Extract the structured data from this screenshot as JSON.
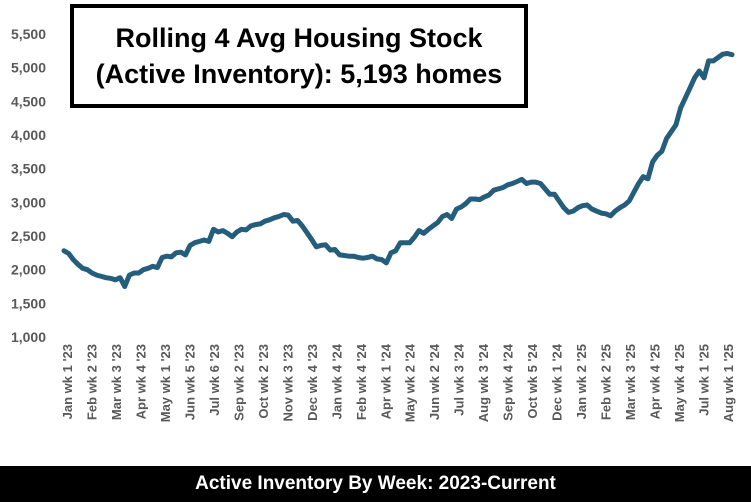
{
  "title": {
    "line1": "Rolling 4 Avg Housing Stock",
    "line2": "(Active Inventory): 5,193 homes"
  },
  "footer": "Active Inventory By Week:  2023-Current",
  "colors": {
    "line": "#255E7D",
    "axis_text": "#595959",
    "background": "#ffffff"
  },
  "chart_data": {
    "type": "line",
    "grid": false,
    "legend": "none",
    "ylim": [
      1000,
      5500
    ],
    "yticks": [
      1000,
      1500,
      2000,
      2500,
      3000,
      3500,
      4000,
      4500,
      5000,
      5500
    ],
    "ytick_labels": [
      "1,000",
      "1,500",
      "2,000",
      "2,500",
      "3,000",
      "3,500",
      "4,000",
      "4,500",
      "5,000",
      "5,500"
    ],
    "xtick_labels": [
      "Jan wk 1 '23",
      "Feb wk 2 '23",
      "Mar wk 3 '23",
      "Apr wk 4 '23",
      "May wk 1 '23",
      "Jun wk 5 '23",
      "Jul wk 6 '23",
      "Sep wk 2 '23",
      "Oct wk 2 '23",
      "Nov wk 3 '23",
      "Dec wk 4 '23",
      "Jan wk 4 '24",
      "Feb wk 4 '24",
      "Apr wk 1 '24",
      "May wk 2 '24",
      "Jun wk 2 '24",
      "Jul wk 3 '24",
      "Aug wk 3 '24",
      "Sep wk 4 '24",
      "Oct wk 5 '24",
      "Dec wk 1 '24",
      "Jan wk 2 '25",
      "Feb wk 2 '25",
      "Mar wk 3 '25",
      "Apr wk 4 '25",
      "May wk 4 '25",
      "Jul wk 1 '25",
      "Aug wk 1 '25"
    ],
    "series": [
      {
        "values": [
          2280,
          2240,
          2150,
          2080,
          2020,
          2000,
          1950,
          1920,
          1900,
          1880,
          1870,
          1850,
          1880,
          1750,
          1920,
          1950,
          1950,
          2000,
          2020,
          2050,
          2030,
          2180,
          2200,
          2190,
          2250,
          2260,
          2220,
          2360,
          2400,
          2420,
          2440,
          2420,
          2600,
          2560,
          2580,
          2540,
          2490,
          2560,
          2600,
          2590,
          2650,
          2670,
          2680,
          2720,
          2740,
          2770,
          2790,
          2820,
          2810,
          2720,
          2730,
          2650,
          2550,
          2450,
          2340,
          2360,
          2370,
          2290,
          2300,
          2220,
          2210,
          2200,
          2200,
          2180,
          2170,
          2180,
          2200,
          2160,
          2150,
          2100,
          2250,
          2280,
          2400,
          2400,
          2400,
          2480,
          2580,
          2540,
          2600,
          2650,
          2700,
          2790,
          2820,
          2760,
          2900,
          2930,
          2980,
          3050,
          3050,
          3040,
          3080,
          3110,
          3180,
          3200,
          3220,
          3260,
          3280,
          3310,
          3340,
          3280,
          3300,
          3300,
          3280,
          3200,
          3120,
          3120,
          3020,
          2920,
          2850,
          2870,
          2920,
          2950,
          2960,
          2900,
          2870,
          2840,
          2830,
          2800,
          2870,
          2920,
          2960,
          3020,
          3150,
          3280,
          3380,
          3350,
          3600,
          3700,
          3760,
          3950,
          4050,
          4150,
          4400,
          4550,
          4700,
          4850,
          4950,
          4850,
          5100,
          5100,
          5150,
          5200,
          5210,
          5193
        ]
      }
    ]
  }
}
